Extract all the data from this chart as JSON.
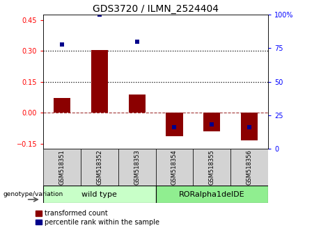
{
  "title": "GDS3720 / ILMN_2524404",
  "samples": [
    "GSM518351",
    "GSM518352",
    "GSM518353",
    "GSM518354",
    "GSM518355",
    "GSM518356"
  ],
  "red_bars": [
    0.07,
    0.305,
    0.09,
    -0.115,
    -0.09,
    -0.135
  ],
  "blue_dot_right_axis": [
    78,
    100,
    80,
    16,
    18,
    16
  ],
  "ylim_left": [
    -0.175,
    0.475
  ],
  "ylim_right": [
    0,
    100
  ],
  "yticks_left": [
    -0.15,
    0,
    0.15,
    0.3,
    0.45
  ],
  "yticks_right": [
    0,
    25,
    50,
    75,
    100
  ],
  "hlines_dotted": [
    0.15,
    0.3
  ],
  "hline_dashed": 0,
  "group1_label": "wild type",
  "group2_label": "RORalpha1delDE",
  "group1_color": "#c8ffc8",
  "group2_color": "#90ee90",
  "genotype_label": "genotype/variation",
  "legend_red": "transformed count",
  "legend_blue": "percentile rank within the sample",
  "bar_color": "#8b0000",
  "dot_color": "#00008b",
  "bar_width": 0.45,
  "title_fontsize": 10,
  "tick_fontsize": 7,
  "sample_fontsize": 6,
  "group_fontsize": 8,
  "legend_fontsize": 7
}
